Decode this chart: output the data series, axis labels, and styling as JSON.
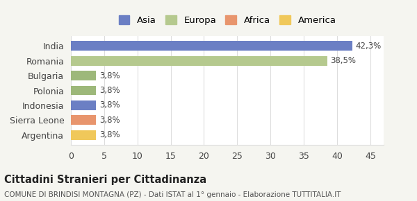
{
  "categories": [
    "Argentina",
    "Sierra Leone",
    "Indonesia",
    "Polonia",
    "Bulgaria",
    "Romania",
    "India"
  ],
  "values": [
    3.8,
    3.8,
    3.8,
    3.8,
    3.8,
    38.5,
    42.3
  ],
  "bar_colors": [
    "#f0c85a",
    "#e8956d",
    "#6b7fc4",
    "#9db87a",
    "#9db87a",
    "#b5c98e",
    "#6b7fc4"
  ],
  "labels": [
    "3,8%",
    "3,8%",
    "3,8%",
    "3,8%",
    "3,8%",
    "38,5%",
    "42,3%"
  ],
  "xlim": [
    0,
    47
  ],
  "xticks": [
    0,
    5,
    10,
    15,
    20,
    25,
    30,
    35,
    40,
    45
  ],
  "title1": "Cittadini Stranieri per Cittadinanza",
  "title2": "COMUNE DI BRINDISI MONTAGNA (PZ) - Dati ISTAT al 1° gennaio - Elaborazione TUTTITALIA.IT",
  "legend_labels": [
    "Asia",
    "Europa",
    "Africa",
    "America"
  ],
  "legend_colors": [
    "#6b7fc4",
    "#b5c98e",
    "#e8956d",
    "#f0c85a"
  ],
  "background_color": "#f5f5f0",
  "bar_background": "#ffffff",
  "grid_color": "#dddddd"
}
